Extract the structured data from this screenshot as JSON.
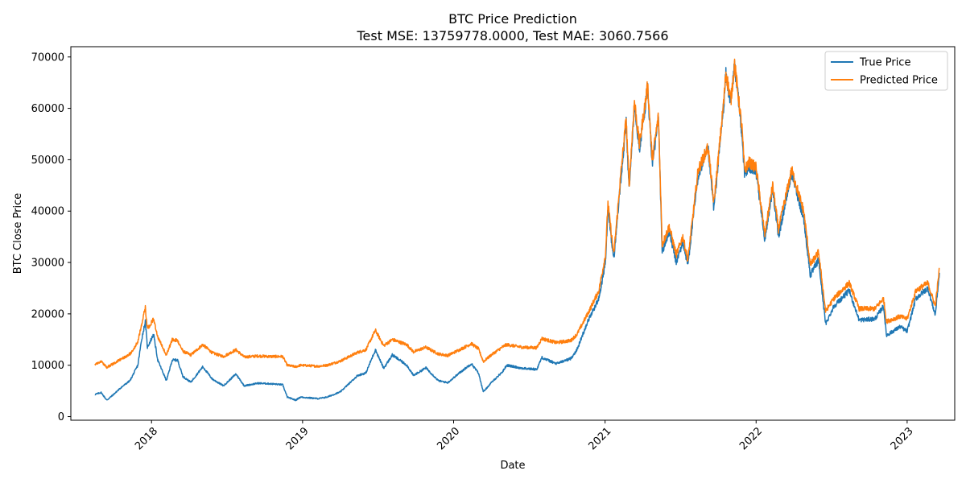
{
  "chart_data": {
    "type": "line",
    "title": "BTC Price Prediction",
    "subtitle": "Test MSE: 13759778.0000, Test MAE: 3060.7566",
    "xlabel": "Date",
    "ylabel": "BTC Close Price",
    "x_range": [
      "2017-06-20",
      "2023-04-26"
    ],
    "ylim": [
      -700,
      72000
    ],
    "x_ticks": [
      {
        "date": "2018-01-01",
        "label": "2018"
      },
      {
        "date": "2019-01-01",
        "label": "2019"
      },
      {
        "date": "2020-01-01",
        "label": "2020"
      },
      {
        "date": "2021-01-01",
        "label": "2021"
      },
      {
        "date": "2022-01-01",
        "label": "2022"
      },
      {
        "date": "2023-01-01",
        "label": "2023"
      }
    ],
    "y_ticks": [
      0,
      10000,
      20000,
      30000,
      40000,
      50000,
      60000,
      70000
    ],
    "grid": false,
    "legend_position": "top-right",
    "series": [
      {
        "name": "True Price",
        "color": "#1f77b4",
        "points": [
          [
            "2017-08-17",
            4300
          ],
          [
            "2017-09-01",
            4700
          ],
          [
            "2017-09-15",
            3200
          ],
          [
            "2017-10-01",
            4300
          ],
          [
            "2017-10-20",
            5700
          ],
          [
            "2017-11-10",
            7000
          ],
          [
            "2017-11-29",
            10000
          ],
          [
            "2017-12-08",
            15000
          ],
          [
            "2017-12-17",
            18500
          ],
          [
            "2017-12-22",
            13500
          ],
          [
            "2018-01-06",
            16000
          ],
          [
            "2018-01-16",
            11000
          ],
          [
            "2018-02-06",
            7000
          ],
          [
            "2018-02-20",
            11000
          ],
          [
            "2018-03-05",
            11000
          ],
          [
            "2018-03-18",
            7800
          ],
          [
            "2018-04-06",
            6700
          ],
          [
            "2018-05-05",
            9700
          ],
          [
            "2018-05-28",
            7300
          ],
          [
            "2018-06-24",
            6000
          ],
          [
            "2018-07-24",
            8300
          ],
          [
            "2018-08-13",
            6000
          ],
          [
            "2018-09-15",
            6500
          ],
          [
            "2018-10-15",
            6400
          ],
          [
            "2018-11-14",
            6200
          ],
          [
            "2018-11-25",
            3800
          ],
          [
            "2018-12-15",
            3200
          ],
          [
            "2018-12-27",
            3800
          ],
          [
            "2019-02-08",
            3500
          ],
          [
            "2019-03-01",
            3800
          ],
          [
            "2019-04-02",
            4800
          ],
          [
            "2019-05-14",
            8000
          ],
          [
            "2019-06-03",
            8500
          ],
          [
            "2019-06-26",
            13000
          ],
          [
            "2019-07-16",
            9400
          ],
          [
            "2019-08-06",
            12000
          ],
          [
            "2019-09-10",
            10000
          ],
          [
            "2019-09-26",
            8000
          ],
          [
            "2019-10-26",
            9500
          ],
          [
            "2019-11-25",
            7000
          ],
          [
            "2019-12-18",
            6600
          ],
          [
            "2020-01-15",
            8500
          ],
          [
            "2020-02-13",
            10300
          ],
          [
            "2020-03-01",
            8500
          ],
          [
            "2020-03-13",
            4800
          ],
          [
            "2020-04-01",
            6600
          ],
          [
            "2020-04-29",
            8800
          ],
          [
            "2020-05-08",
            10000
          ],
          [
            "2020-06-15",
            9400
          ],
          [
            "2020-07-20",
            9200
          ],
          [
            "2020-08-01",
            11500
          ],
          [
            "2020-09-05",
            10300
          ],
          [
            "2020-10-10",
            11300
          ],
          [
            "2020-10-25",
            13000
          ],
          [
            "2020-11-20",
            18500
          ],
          [
            "2020-12-17",
            23000
          ],
          [
            "2021-01-02",
            30000
          ],
          [
            "2021-01-08",
            40500
          ],
          [
            "2021-01-22",
            30500
          ],
          [
            "2021-02-09",
            47000
          ],
          [
            "2021-02-21",
            57000
          ],
          [
            "2021-02-28",
            44000
          ],
          [
            "2021-03-13",
            61000
          ],
          [
            "2021-03-25",
            52000
          ],
          [
            "2021-04-14",
            64000
          ],
          [
            "2021-04-25",
            49000
          ],
          [
            "2021-05-10",
            58000
          ],
          [
            "2021-05-19",
            32000
          ],
          [
            "2021-06-05",
            36000
          ],
          [
            "2021-06-22",
            30000
          ],
          [
            "2021-07-08",
            34000
          ],
          [
            "2021-07-20",
            29500
          ],
          [
            "2021-08-14",
            47000
          ],
          [
            "2021-09-07",
            52000
          ],
          [
            "2021-09-21",
            40500
          ],
          [
            "2021-10-15",
            61000
          ],
          [
            "2021-10-20",
            66500
          ],
          [
            "2021-11-01",
            61000
          ],
          [
            "2021-11-10",
            68500
          ],
          [
            "2021-11-28",
            55000
          ],
          [
            "2021-12-04",
            47000
          ],
          [
            "2021-12-15",
            48500
          ],
          [
            "2022-01-01",
            47500
          ],
          [
            "2022-01-22",
            34500
          ],
          [
            "2022-02-10",
            44500
          ],
          [
            "2022-02-24",
            35000
          ],
          [
            "2022-03-28",
            47500
          ],
          [
            "2022-04-26",
            38500
          ],
          [
            "2022-05-12",
            27500
          ],
          [
            "2022-06-01",
            30500
          ],
          [
            "2022-06-18",
            18000
          ],
          [
            "2022-07-08",
            21500
          ],
          [
            "2022-08-14",
            24500
          ],
          [
            "2022-09-07",
            18800
          ],
          [
            "2022-10-15",
            19000
          ],
          [
            "2022-11-05",
            21500
          ],
          [
            "2022-11-12",
            15800
          ],
          [
            "2022-12-15",
            17500
          ],
          [
            "2023-01-01",
            16600
          ],
          [
            "2023-01-22",
            23000
          ],
          [
            "2023-02-20",
            25000
          ],
          [
            "2023-03-10",
            19800
          ],
          [
            "2023-03-20",
            28000
          ]
        ]
      },
      {
        "name": "Predicted Price",
        "color": "#ff7f0e",
        "points": [
          [
            "2017-08-17",
            10200
          ],
          [
            "2017-09-01",
            10700
          ],
          [
            "2017-09-15",
            9600
          ],
          [
            "2017-10-01",
            10300
          ],
          [
            "2017-10-20",
            11200
          ],
          [
            "2017-11-10",
            12200
          ],
          [
            "2017-11-29",
            14500
          ],
          [
            "2017-12-08",
            18000
          ],
          [
            "2017-12-17",
            21200
          ],
          [
            "2017-12-22",
            17000
          ],
          [
            "2018-01-06",
            19000
          ],
          [
            "2018-01-16",
            15500
          ],
          [
            "2018-02-06",
            12000
          ],
          [
            "2018-02-20",
            15000
          ],
          [
            "2018-03-05",
            14800
          ],
          [
            "2018-03-18",
            12700
          ],
          [
            "2018-04-06",
            12000
          ],
          [
            "2018-05-05",
            14000
          ],
          [
            "2018-05-28",
            12400
          ],
          [
            "2018-06-24",
            11700
          ],
          [
            "2018-07-24",
            13000
          ],
          [
            "2018-08-13",
            11600
          ],
          [
            "2018-09-15",
            11800
          ],
          [
            "2018-10-15",
            11700
          ],
          [
            "2018-11-14",
            11700
          ],
          [
            "2018-11-25",
            10000
          ],
          [
            "2018-12-15",
            9700
          ],
          [
            "2018-12-27",
            10000
          ],
          [
            "2019-02-08",
            9800
          ],
          [
            "2019-03-01",
            10000
          ],
          [
            "2019-04-02",
            10800
          ],
          [
            "2019-05-14",
            12500
          ],
          [
            "2019-06-03",
            13000
          ],
          [
            "2019-06-26",
            16800
          ],
          [
            "2019-07-16",
            13800
          ],
          [
            "2019-08-06",
            15000
          ],
          [
            "2019-09-10",
            14000
          ],
          [
            "2019-09-26",
            12600
          ],
          [
            "2019-10-26",
            13500
          ],
          [
            "2019-11-25",
            12200
          ],
          [
            "2019-12-18",
            11900
          ],
          [
            "2020-01-15",
            13000
          ],
          [
            "2020-02-13",
            14200
          ],
          [
            "2020-03-01",
            13200
          ],
          [
            "2020-03-13",
            10700
          ],
          [
            "2020-04-01",
            12000
          ],
          [
            "2020-04-29",
            13600
          ],
          [
            "2020-05-08",
            14000
          ],
          [
            "2020-06-15",
            13500
          ],
          [
            "2020-07-20",
            13400
          ],
          [
            "2020-08-01",
            15200
          ],
          [
            "2020-09-05",
            14400
          ],
          [
            "2020-10-10",
            14800
          ],
          [
            "2020-10-25",
            16000
          ],
          [
            "2020-11-20",
            20000
          ],
          [
            "2020-12-17",
            24500
          ],
          [
            "2021-01-02",
            31500
          ],
          [
            "2021-01-08",
            41500
          ],
          [
            "2021-01-22",
            31500
          ],
          [
            "2021-02-09",
            48000
          ],
          [
            "2021-02-21",
            58000
          ],
          [
            "2021-02-28",
            45000
          ],
          [
            "2021-03-13",
            61500
          ],
          [
            "2021-03-25",
            53000
          ],
          [
            "2021-04-14",
            64500
          ],
          [
            "2021-04-25",
            50000
          ],
          [
            "2021-05-10",
            58500
          ],
          [
            "2021-05-19",
            33500
          ],
          [
            "2021-06-05",
            37000
          ],
          [
            "2021-06-22",
            31500
          ],
          [
            "2021-07-08",
            35000
          ],
          [
            "2021-07-20",
            30500
          ],
          [
            "2021-08-14",
            48000
          ],
          [
            "2021-09-07",
            52500
          ],
          [
            "2021-09-21",
            41500
          ],
          [
            "2021-10-15",
            61500
          ],
          [
            "2021-10-20",
            67000
          ],
          [
            "2021-11-01",
            61500
          ],
          [
            "2021-11-10",
            68700
          ],
          [
            "2021-11-28",
            56000
          ],
          [
            "2021-12-04",
            48000
          ],
          [
            "2021-12-15",
            49500
          ],
          [
            "2022-01-01",
            48500
          ],
          [
            "2022-01-22",
            35500
          ],
          [
            "2022-02-10",
            45000
          ],
          [
            "2022-02-24",
            36500
          ],
          [
            "2022-03-28",
            48000
          ],
          [
            "2022-04-26",
            40000
          ],
          [
            "2022-05-12",
            29500
          ],
          [
            "2022-06-01",
            32000
          ],
          [
            "2022-06-18",
            20500
          ],
          [
            "2022-07-08",
            23000
          ],
          [
            "2022-08-14",
            26000
          ],
          [
            "2022-09-07",
            21000
          ],
          [
            "2022-10-15",
            21000
          ],
          [
            "2022-11-05",
            23000
          ],
          [
            "2022-11-12",
            18500
          ],
          [
            "2022-12-15",
            19500
          ],
          [
            "2023-01-01",
            19000
          ],
          [
            "2023-01-22",
            24500
          ],
          [
            "2023-02-20",
            26000
          ],
          [
            "2023-03-10",
            21500
          ],
          [
            "2023-03-20",
            28800
          ]
        ]
      }
    ]
  }
}
